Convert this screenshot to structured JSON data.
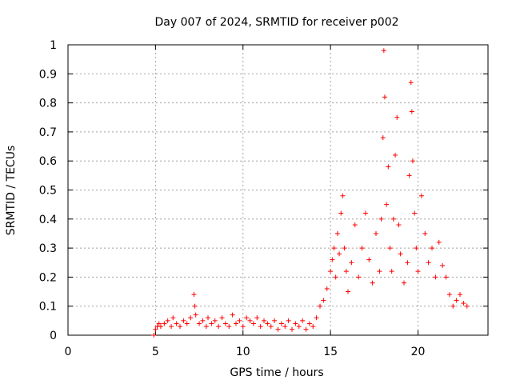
{
  "chart_data": {
    "type": "scatter",
    "title": "Day 007 of 2024, SRMTID for receiver p002",
    "xlabel": "GPS time / hours",
    "ylabel": "SRMTID / TECUs",
    "xlim": [
      0,
      24
    ],
    "ylim": [
      0,
      1
    ],
    "xticks": [
      0,
      5,
      10,
      15,
      20
    ],
    "xtick_labels": [
      "0",
      "5",
      "10",
      "15",
      "20"
    ],
    "yticks": [
      0,
      0.1,
      0.2,
      0.3,
      0.4,
      0.5,
      0.6,
      0.7,
      0.8,
      0.9,
      1
    ],
    "ytick_labels": [
      "0",
      "0.1",
      "0.2",
      "0.3",
      "0.4",
      "0.5",
      "0.6",
      "0.7",
      "0.8",
      "0.9",
      "1"
    ],
    "grid": true,
    "marker": "+",
    "series": [
      {
        "name": "SRMTID",
        "color": "#ff0000",
        "x": [
          4.9,
          5.0,
          5.1,
          5.2,
          5.3,
          5.5,
          5.7,
          5.9,
          6.0,
          6.2,
          6.4,
          6.6,
          6.8,
          7.0,
          7.2,
          7.25,
          7.3,
          7.5,
          7.7,
          7.9,
          8.0,
          8.2,
          8.4,
          8.6,
          8.8,
          9.0,
          9.2,
          9.4,
          9.6,
          9.8,
          10.0,
          10.2,
          10.4,
          10.6,
          10.8,
          11.0,
          11.2,
          11.4,
          11.6,
          11.8,
          12.0,
          12.2,
          12.4,
          12.6,
          12.8,
          13.0,
          13.2,
          13.4,
          13.6,
          13.8,
          14.0,
          14.2,
          14.4,
          14.6,
          14.8,
          15.0,
          15.1,
          15.2,
          15.3,
          15.4,
          15.5,
          15.6,
          15.7,
          15.8,
          15.9,
          16.0,
          16.2,
          16.4,
          16.6,
          16.8,
          17.0,
          17.2,
          17.4,
          17.6,
          17.8,
          17.9,
          18.0,
          18.05,
          18.1,
          18.2,
          18.3,
          18.4,
          18.5,
          18.6,
          18.7,
          18.8,
          18.9,
          19.0,
          19.2,
          19.4,
          19.5,
          19.6,
          19.65,
          19.7,
          19.8,
          19.9,
          20.0,
          20.2,
          20.4,
          20.6,
          20.8,
          21.0,
          21.2,
          21.4,
          21.6,
          21.8,
          22.0,
          22.2,
          22.4,
          22.6,
          22.8
        ],
        "y": [
          0.0,
          0.02,
          0.03,
          0.04,
          0.03,
          0.04,
          0.05,
          0.03,
          0.06,
          0.04,
          0.03,
          0.05,
          0.04,
          0.06,
          0.14,
          0.1,
          0.07,
          0.04,
          0.05,
          0.03,
          0.06,
          0.04,
          0.05,
          0.03,
          0.06,
          0.04,
          0.03,
          0.07,
          0.04,
          0.05,
          0.03,
          0.06,
          0.05,
          0.04,
          0.06,
          0.03,
          0.05,
          0.04,
          0.03,
          0.05,
          0.02,
          0.04,
          0.03,
          0.05,
          0.02,
          0.04,
          0.03,
          0.05,
          0.02,
          0.04,
          0.03,
          0.06,
          0.1,
          0.12,
          0.16,
          0.22,
          0.26,
          0.3,
          0.2,
          0.35,
          0.28,
          0.42,
          0.48,
          0.3,
          0.22,
          0.15,
          0.25,
          0.38,
          0.2,
          0.3,
          0.42,
          0.26,
          0.18,
          0.35,
          0.22,
          0.4,
          0.68,
          0.98,
          0.82,
          0.45,
          0.58,
          0.3,
          0.22,
          0.4,
          0.62,
          0.75,
          0.38,
          0.28,
          0.18,
          0.25,
          0.55,
          0.87,
          0.77,
          0.6,
          0.42,
          0.3,
          0.22,
          0.48,
          0.35,
          0.25,
          0.3,
          0.2,
          0.32,
          0.24,
          0.2,
          0.14,
          0.1,
          0.12,
          0.14,
          0.11,
          0.1
        ]
      }
    ]
  }
}
